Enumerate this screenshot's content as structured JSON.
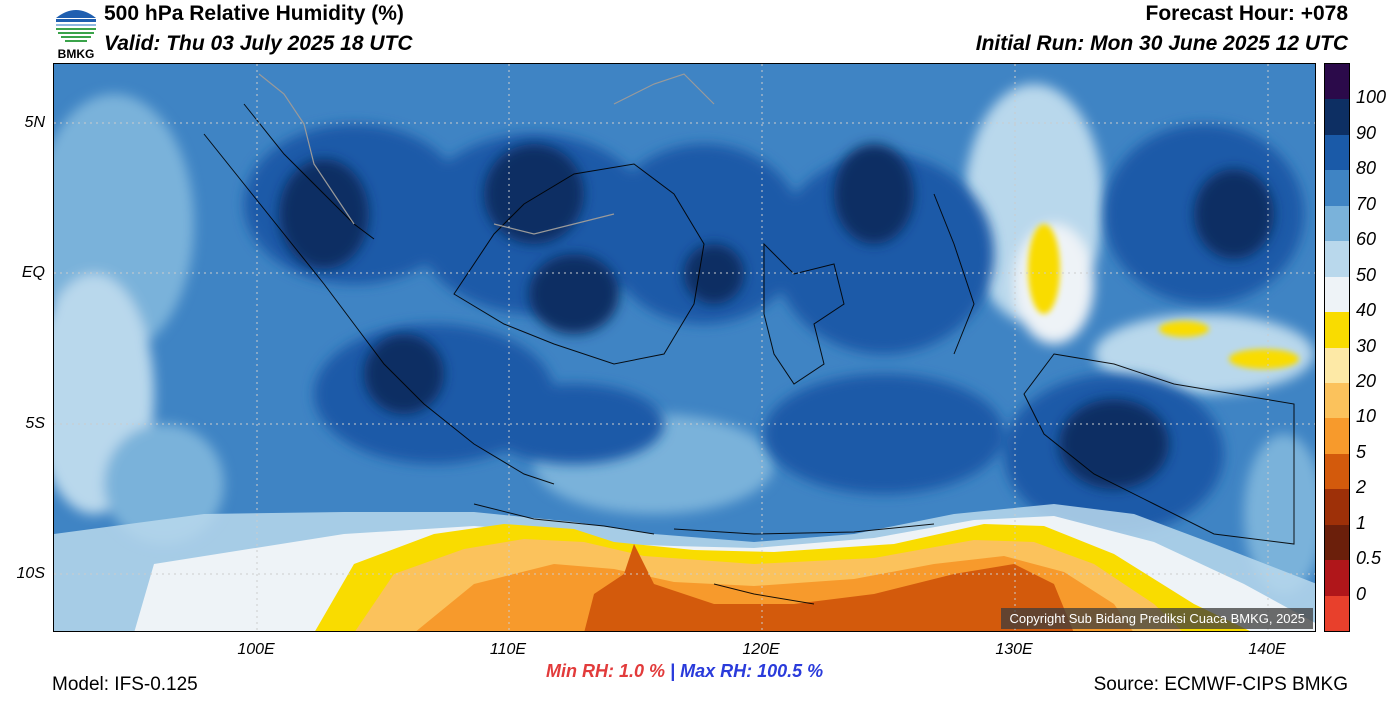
{
  "header": {
    "title": "500 hPa Relative Humidity (%)",
    "valid": "Valid: Thu 03 July 2025 18 UTC",
    "forecast_hour": "Forecast Hour: +078",
    "initial_run": "Initial Run: Mon 30 June 2025 12 UTC"
  },
  "logo_text": "BMKG",
  "axes": {
    "lat_labels": [
      "5N",
      "EQ",
      "5S",
      "10S"
    ],
    "lon_labels": [
      "100E",
      "110E",
      "120E",
      "130E",
      "140E"
    ]
  },
  "copyright": "Copyright Sub Bidang Prediksi Cuaca BMKG, 2025",
  "colorbar": {
    "labels": [
      "100",
      "90",
      "80",
      "70",
      "60",
      "50",
      "40",
      "30",
      "20",
      "10",
      "5",
      "2",
      "1",
      "0.5",
      "0"
    ],
    "colors": [
      "#2b0a4a",
      "#0d2f63",
      "#1a5aa8",
      "#3f84c4",
      "#7ab2da",
      "#b9d8ec",
      "#eef3f7",
      "#f9dc00",
      "#fde9a6",
      "#fbc25c",
      "#f79a2c",
      "#d35a0c",
      "#9e3008",
      "#6b1f0b",
      "#b0161a",
      "#e8402c"
    ]
  },
  "stats": {
    "min": "Min RH:   1.0 %",
    "sep": "|",
    "max": "Max RH: 100.5 %"
  },
  "footer": {
    "model": "Model: IFS-0.125",
    "source": "Source: ECMWF-CIPS BMKG"
  }
}
